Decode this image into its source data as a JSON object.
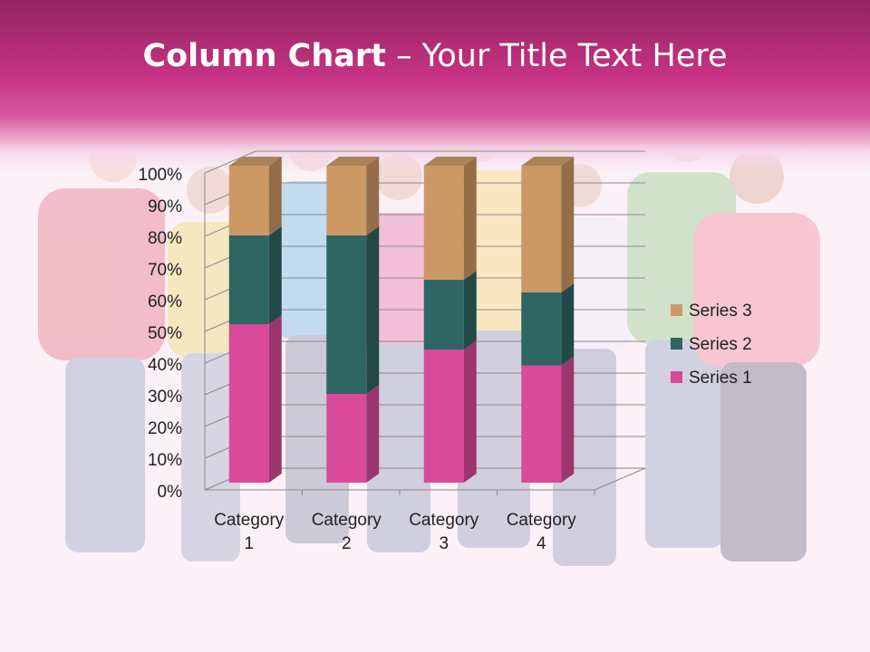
{
  "slide": {
    "title_bold": "Column Chart",
    "title_rest": " – Your Title Text Here",
    "background_image": "group-of-young-people-walking"
  },
  "colors": {
    "header_dark": "#93245f",
    "header_mid": "#c63383",
    "series_1": "#d94a99",
    "series_2": "#2e6664",
    "series_3": "#cc9966"
  },
  "chart_data": {
    "type": "bar",
    "stacked": "percent",
    "style": "3d-column",
    "categories": [
      "Category 1",
      "Category 2",
      "Category 3",
      "Category 4"
    ],
    "category_label_lines": [
      [
        "Category",
        "1"
      ],
      [
        "Category",
        "2"
      ],
      [
        "Category",
        "3"
      ],
      [
        "Category",
        "4"
      ]
    ],
    "series": [
      {
        "name": "Series 1",
        "values": [
          4.3,
          2.5,
          3.5,
          4.5
        ],
        "percent": [
          50,
          28,
          42,
          37
        ]
      },
      {
        "name": "Series 2",
        "values": [
          2.4,
          4.4,
          1.8,
          2.8
        ],
        "percent": [
          28,
          50,
          22,
          23
        ]
      },
      {
        "name": "Series 3",
        "values": [
          2,
          2,
          3,
          5
        ],
        "percent": [
          22,
          22,
          36,
          40
        ]
      }
    ],
    "y_ticks": [
      "0%",
      "10%",
      "20%",
      "30%",
      "40%",
      "50%",
      "60%",
      "70%",
      "80%",
      "90%",
      "100%"
    ],
    "ylim": [
      0,
      100
    ],
    "legend_position": "right",
    "legend_order": [
      "Series 3",
      "Series 2",
      "Series 1"
    ],
    "grid": true
  }
}
